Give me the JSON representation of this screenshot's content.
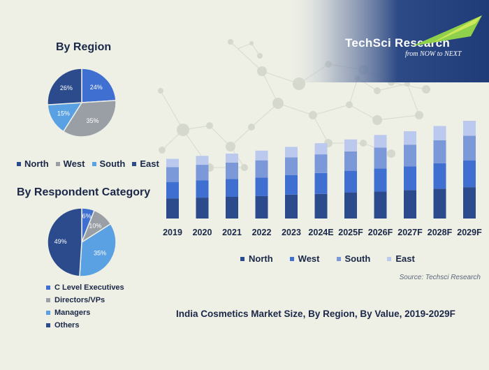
{
  "brand": {
    "name": "TechSci Research",
    "tagline": "from NOW to NEXT"
  },
  "region_title": "By Region",
  "respondent_title": "By Respondent Category",
  "source": "Source: Techsci Research",
  "chart_title": "India Cosmetics Market Size, By Region, By Value, 2019-2029F",
  "colors": {
    "north": "#2b4b8c",
    "west": "#3f6fd1",
    "south": "#7b99d9",
    "east": "#bcc9ee",
    "c_level": "#3f6fd1",
    "directors": "#9a9fa6",
    "managers": "#5aa1e3",
    "others": "#2b4b8c"
  },
  "region_legend": [
    "North",
    "West",
    "South",
    "East"
  ],
  "respondent_legend": [
    "C Level Executives",
    "Directors/VPs",
    "Managers",
    "Others"
  ],
  "chart_data": [
    {
      "type": "pie",
      "title": "By Region",
      "labels": [
        "North",
        "West",
        "South",
        "East"
      ],
      "values": [
        24,
        35,
        15,
        26
      ],
      "value_labels": [
        "24%",
        "35%",
        "15%",
        "26%"
      ]
    },
    {
      "type": "pie",
      "title": "By Respondent Category",
      "labels": [
        "C Level Executives",
        "Directors/VPs",
        "Managers",
        "Others"
      ],
      "values": [
        6,
        10,
        35,
        49
      ],
      "value_labels": [
        "6%",
        "10%",
        "35%",
        "49%"
      ]
    },
    {
      "type": "bar",
      "stacked": true,
      "title": "India Cosmetics Market Size, By Region, By Value, 2019-2029F",
      "categories": [
        "2019",
        "2020",
        "2021",
        "2022",
        "2023",
        "2024E",
        "2025F",
        "2026F",
        "2027F",
        "2028F",
        "2029F"
      ],
      "series": [
        {
          "name": "North",
          "values": [
            27,
            28,
            29,
            30,
            32,
            33,
            35,
            36,
            38,
            40,
            42
          ]
        },
        {
          "name": "West",
          "values": [
            22,
            23,
            24,
            25,
            26,
            28,
            29,
            31,
            32,
            34,
            36
          ]
        },
        {
          "name": "South",
          "values": [
            20,
            21,
            22,
            23,
            24,
            25,
            26,
            28,
            29,
            31,
            33
          ]
        },
        {
          "name": "East",
          "values": [
            11,
            12,
            12,
            13,
            14,
            15,
            16,
            17,
            18,
            19,
            20
          ]
        }
      ],
      "legend_position": "bottom",
      "grid": false
    }
  ]
}
